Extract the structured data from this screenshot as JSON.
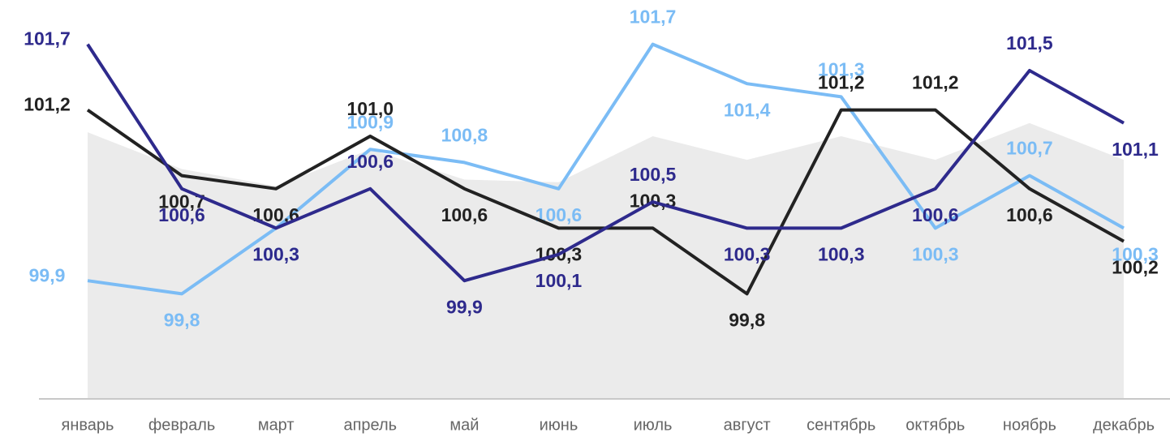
{
  "chart_data": {
    "type": "line",
    "categories": [
      "январь",
      "февраль",
      "март",
      "апрель",
      "май",
      "июнь",
      "июль",
      "август",
      "сентябрь",
      "октябрь",
      "ноябрь",
      "декабрь"
    ],
    "ylim": [
      99,
      102
    ],
    "area": {
      "color": "#ebebeb",
      "values": [
        101.03,
        100.75,
        100.62,
        100.9,
        100.67,
        100.65,
        101.0,
        100.82,
        101.0,
        100.82,
        101.1,
        100.82
      ]
    },
    "series": [
      {
        "color": "#7bbcf5",
        "values": [
          99.9,
          99.8,
          100.3,
          100.9,
          100.8,
          100.6,
          101.7,
          101.4,
          101.3,
          100.3,
          100.7,
          100.3
        ],
        "value_labels": [
          "99,9",
          "99,8",
          "100,3",
          "100,9",
          "100,8",
          "100,6",
          "101,7",
          "101,4",
          "101,3",
          "100,3",
          "100,7",
          "100,3"
        ]
      },
      {
        "color": "#222222",
        "values": [
          101.2,
          100.7,
          100.6,
          101.0,
          100.6,
          100.3,
          100.3,
          99.8,
          101.2,
          101.2,
          100.6,
          100.2
        ],
        "value_labels": [
          "101,2",
          "100,7",
          "100,6",
          "101,0",
          "100,6",
          "100,3",
          "100,3",
          "99,8",
          "101,2",
          "101,2",
          "100,6",
          "100,2"
        ]
      },
      {
        "color": "#2e2a8c",
        "values": [
          101.7,
          100.6,
          100.3,
          100.6,
          99.9,
          100.1,
          100.5,
          100.3,
          100.3,
          100.6,
          101.5,
          101.1
        ],
        "value_labels": [
          "101,7",
          "100,6",
          "100,3",
          "100,6",
          "99,9",
          "100,1",
          "100,5",
          "100,3",
          "100,3",
          "100,6",
          "101,5",
          "101,1"
        ]
      }
    ]
  }
}
